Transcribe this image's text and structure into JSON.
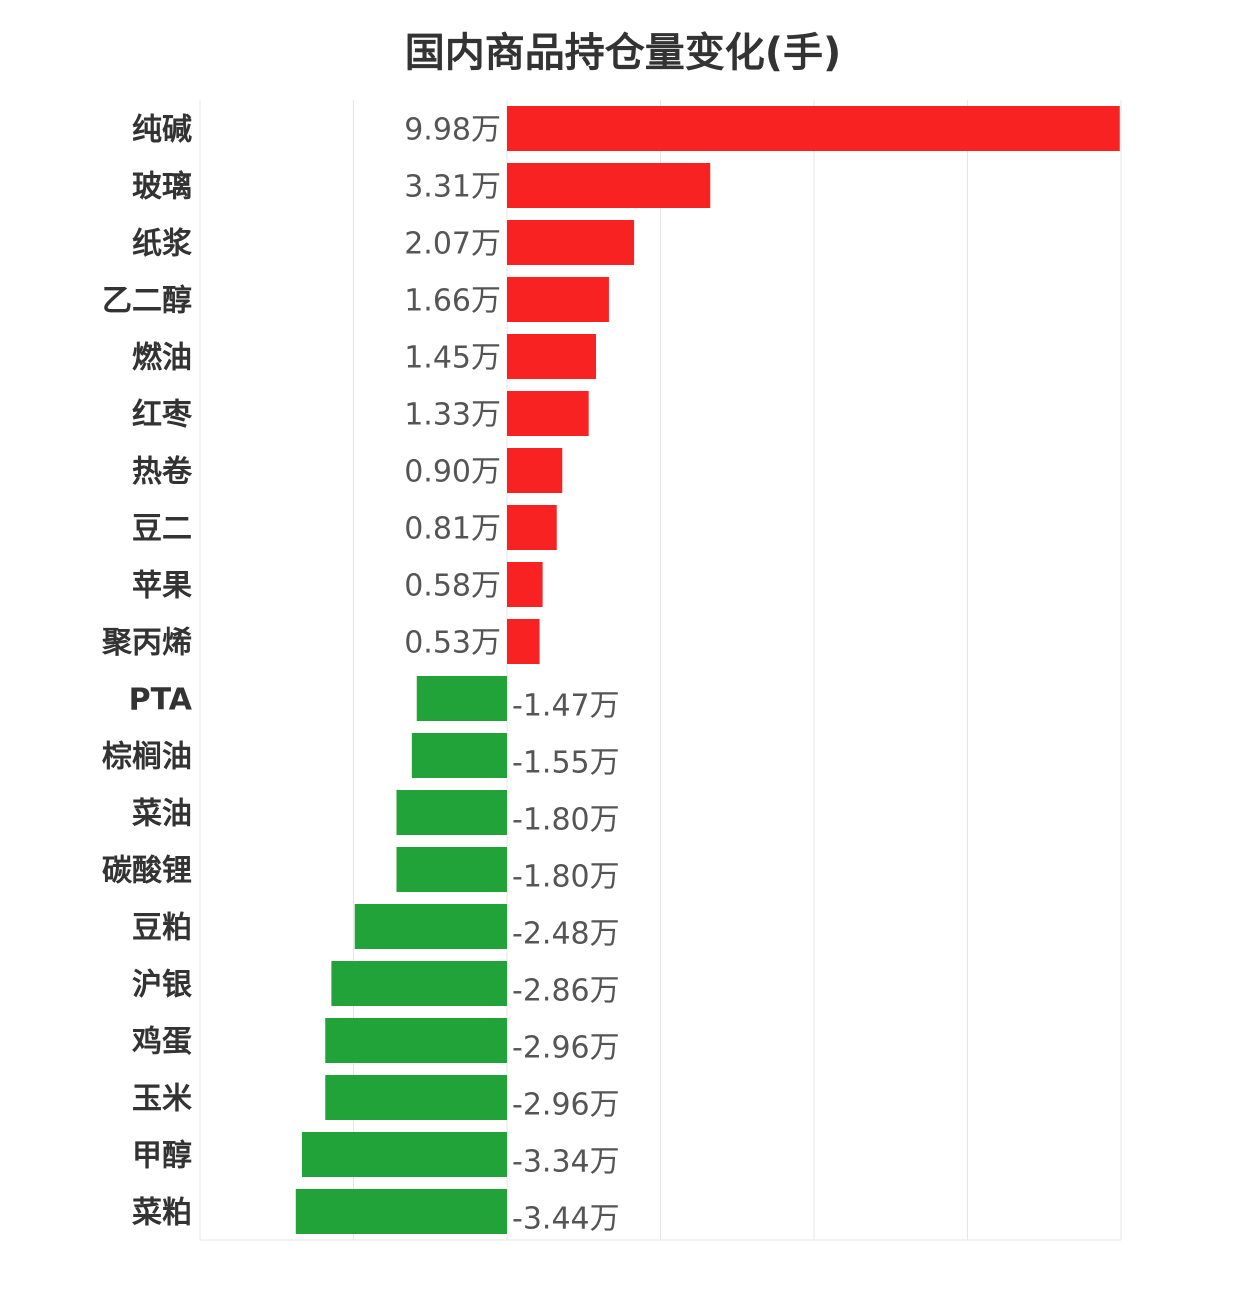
{
  "chart_data": {
    "type": "bar",
    "orientation": "horizontal",
    "title": "国内商品持仓量变化(手)",
    "unit_suffix": "万",
    "xlim": [
      -5,
      10
    ],
    "grid": true,
    "colors": {
      "positive": "#f82222",
      "negative": "#21a33a"
    },
    "categories": [
      "纯碱",
      "玻璃",
      "纸浆",
      "乙二醇",
      "燃油",
      "红枣",
      "热卷",
      "豆二",
      "苹果",
      "聚丙烯",
      "PTA",
      "棕榈油",
      "菜油",
      "碳酸锂",
      "豆粕",
      "沪银",
      "鸡蛋",
      "玉米",
      "甲醇",
      "菜粕"
    ],
    "values": [
      9.98,
      3.31,
      2.07,
      1.66,
      1.45,
      1.33,
      0.9,
      0.81,
      0.58,
      0.53,
      -1.47,
      -1.55,
      -1.8,
      -1.8,
      -2.48,
      -2.86,
      -2.96,
      -2.96,
      -3.34,
      -3.44
    ],
    "value_labels": [
      "9.98万",
      "3.31万",
      "2.07万",
      "1.66万",
      "1.45万",
      "1.33万",
      "0.90万",
      "0.81万",
      "0.58万",
      "0.53万",
      "-1.47万",
      "-1.55万",
      "-1.80万",
      "-1.80万",
      "-2.48万",
      "-2.86万",
      "-2.96万",
      "-2.96万",
      "-3.34万",
      "-3.44万"
    ]
  }
}
